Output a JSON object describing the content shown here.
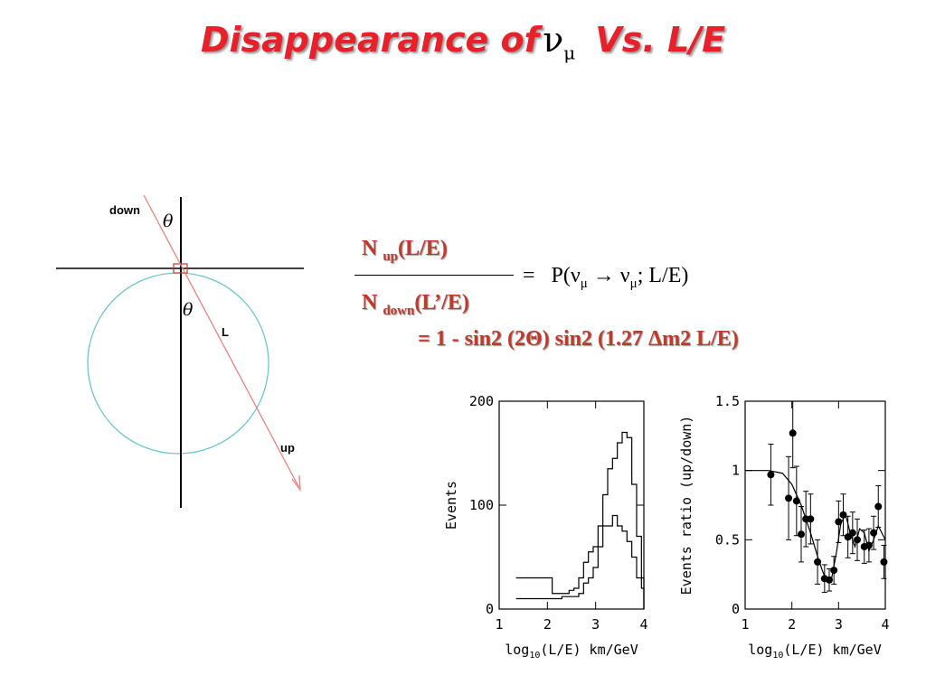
{
  "title": {
    "prefix": "Disappearance of",
    "nu": "ν",
    "mu": "μ",
    "suffix": "Vs.  L/E"
  },
  "diagram": {
    "label_down": "down",
    "label_up": "up",
    "label_L": "L",
    "label_theta": "θ"
  },
  "formula": {
    "num_N": "N ",
    "num_sub": "up",
    "num_arg": "(L/E)",
    "den_N": "N ",
    "den_sub": "down",
    "den_arg": "(L’/E)",
    "eq_sign": "=",
    "rhs_pre": "P(ν",
    "rhs_sub1": "μ",
    "rhs_arrow": " → ν",
    "rhs_sub2": "μ",
    "rhs_post": "; L/E)",
    "result": "= 1 - sin2 (2Θ) sin2 (1.27 Δm2 L/E)"
  },
  "colors": {
    "title": "#e8202a",
    "formula": "#c0392b",
    "circle": "#6cc7c7",
    "track": "#f08080"
  },
  "chart_data": [
    {
      "type": "line",
      "ylabel": "Events",
      "xlabel_pre": "log",
      "xlabel_sub": "10",
      "xlabel_post": "(L/E) km/GeV",
      "xlim": [
        1,
        4
      ],
      "ylim": [
        0,
        200
      ],
      "xticks": [
        "1",
        "2",
        "3",
        "4"
      ],
      "yticks": [
        "0",
        "100",
        "200"
      ],
      "series": [
        {
          "x": [
            1.35,
            1.8,
            2.1,
            2.3,
            2.45,
            2.55,
            2.65,
            2.75,
            2.85,
            2.95,
            3.05,
            3.15,
            3.25,
            3.35,
            3.45,
            3.55,
            3.65,
            3.75,
            3.85,
            3.95,
            4.0
          ],
          "y": [
            30,
            30,
            15,
            15,
            18,
            20,
            30,
            45,
            55,
            60,
            80,
            110,
            135,
            145,
            160,
            170,
            165,
            120,
            70,
            30,
            0
          ]
        },
        {
          "x": [
            1.35,
            1.8,
            2.1,
            2.3,
            2.45,
            2.55,
            2.65,
            2.75,
            2.85,
            2.95,
            3.05,
            3.15,
            3.25,
            3.35,
            3.45,
            3.55,
            3.65,
            3.75,
            3.85,
            3.95,
            4.0
          ],
          "y": [
            10,
            10,
            10,
            12,
            12,
            12,
            15,
            25,
            30,
            40,
            60,
            80,
            80,
            90,
            80,
            75,
            65,
            50,
            30,
            20,
            0
          ]
        }
      ]
    },
    {
      "type": "scatter",
      "ylabel": "Events ratio (up/down)",
      "xlabel_pre": "log",
      "xlabel_sub": "10",
      "xlabel_post": "(L/E) km/GeV",
      "xlim": [
        1,
        4
      ],
      "ylim": [
        0,
        1.5
      ],
      "xticks": [
        "1",
        "2",
        "3",
        "4"
      ],
      "yticks": [
        "0",
        "0.5",
        "1",
        "1.5"
      ],
      "points": [
        {
          "x": 1.55,
          "y": 0.97,
          "err": 0.22
        },
        {
          "x": 1.93,
          "y": 0.8,
          "err": 0.3
        },
        {
          "x": 2.02,
          "y": 1.27,
          "err": 0.25
        },
        {
          "x": 2.1,
          "y": 0.78,
          "err": 0.25
        },
        {
          "x": 2.2,
          "y": 0.54,
          "err": 0.2
        },
        {
          "x": 2.3,
          "y": 0.65,
          "err": 0.2
        },
        {
          "x": 2.4,
          "y": 0.65,
          "err": 0.18
        },
        {
          "x": 2.55,
          "y": 0.34,
          "err": 0.16
        },
        {
          "x": 2.7,
          "y": 0.22,
          "err": 0.1
        },
        {
          "x": 2.8,
          "y": 0.21,
          "err": 0.08
        },
        {
          "x": 2.9,
          "y": 0.28,
          "err": 0.1
        },
        {
          "x": 3.0,
          "y": 0.63,
          "err": 0.15
        },
        {
          "x": 3.1,
          "y": 0.68,
          "err": 0.15
        },
        {
          "x": 3.2,
          "y": 0.52,
          "err": 0.15
        },
        {
          "x": 3.3,
          "y": 0.55,
          "err": 0.15
        },
        {
          "x": 3.4,
          "y": 0.5,
          "err": 0.15
        },
        {
          "x": 3.55,
          "y": 0.45,
          "err": 0.12
        },
        {
          "x": 3.65,
          "y": 0.46,
          "err": 0.12
        },
        {
          "x": 3.75,
          "y": 0.55,
          "err": 0.12
        },
        {
          "x": 3.85,
          "y": 0.74,
          "err": 0.15
        },
        {
          "x": 3.97,
          "y": 0.34,
          "err": 0.12
        }
      ],
      "curve": {
        "x": [
          1.0,
          1.5,
          1.8,
          2.0,
          2.2,
          2.4,
          2.55,
          2.65,
          2.75,
          2.85,
          2.95,
          3.05,
          3.15,
          3.25,
          3.35,
          3.45,
          3.55,
          3.65,
          3.75,
          3.85,
          4.0
        ],
        "y": [
          1.0,
          1.0,
          0.98,
          0.9,
          0.75,
          0.55,
          0.38,
          0.28,
          0.2,
          0.22,
          0.4,
          0.62,
          0.68,
          0.55,
          0.45,
          0.58,
          0.55,
          0.42,
          0.5,
          0.6,
          0.5
        ]
      }
    }
  ]
}
